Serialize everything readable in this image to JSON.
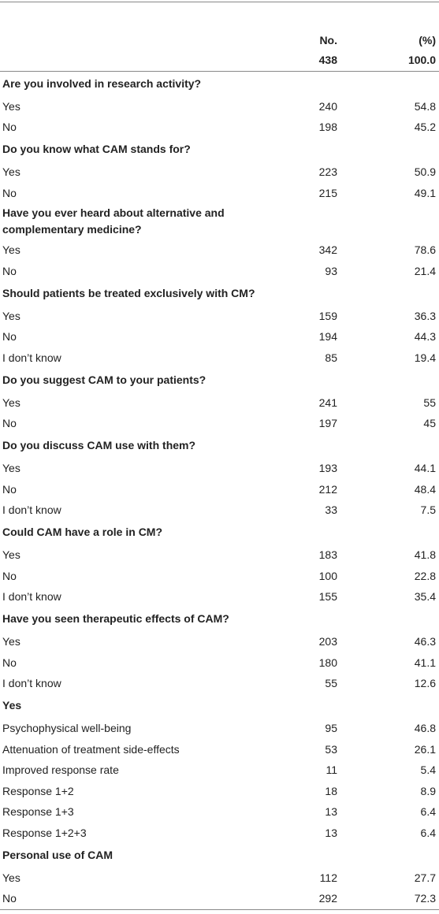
{
  "header": {
    "col_n": "No.",
    "col_pct": "(%)",
    "total_n": "438",
    "total_pct": "100.0"
  },
  "sections": [
    {
      "title": "Are you involved in research activity?",
      "rows": [
        [
          "Yes",
          "240",
          "54.8"
        ],
        [
          "No",
          "198",
          "45.2"
        ]
      ]
    },
    {
      "title": "Do you know what CAM stands for?",
      "rows": [
        [
          "Yes",
          "223",
          "50.9"
        ],
        [
          "No",
          "215",
          "49.1"
        ]
      ]
    },
    {
      "title": "Have you ever heard about alternative and complementary medicine?",
      "rows": [
        [
          "Yes",
          "342",
          "78.6"
        ],
        [
          "No",
          "93",
          "21.4"
        ]
      ]
    },
    {
      "title": "Should patients be treated exclusively with CM?",
      "rows": [
        [
          "Yes",
          "159",
          "36.3"
        ],
        [
          "No",
          "194",
          "44.3"
        ],
        [
          "I don’t know",
          "85",
          "19.4"
        ]
      ]
    },
    {
      "title": "Do you suggest CAM to your patients?",
      "rows": [
        [
          "Yes",
          "241",
          "55"
        ],
        [
          "No",
          "197",
          "45"
        ]
      ]
    },
    {
      "title": "Do you discuss CAM use with them?",
      "rows": [
        [
          "Yes",
          "193",
          "44.1"
        ],
        [
          "No",
          "212",
          "48.4"
        ],
        [
          "I don’t know",
          "33",
          "7.5"
        ]
      ]
    },
    {
      "title": "Could CAM have a role in CM?",
      "rows": [
        [
          "Yes",
          "183",
          "41.8"
        ],
        [
          "No",
          "100",
          "22.8"
        ],
        [
          "I don’t know",
          "155",
          "35.4"
        ]
      ]
    },
    {
      "title": "Have you seen therapeutic effects of CAM?",
      "rows": [
        [
          "Yes",
          "203",
          "46.3"
        ],
        [
          "No",
          "180",
          "41.1"
        ],
        [
          "I don’t know",
          "55",
          "12.6"
        ]
      ]
    },
    {
      "title": "Yes",
      "rows": [
        [
          "Psychophysical well-being",
          "95",
          "46.8"
        ],
        [
          "Attenuation of treatment side-effects",
          "53",
          "26.1"
        ],
        [
          "Improved response rate",
          "11",
          "5.4"
        ],
        [
          "Response 1+2",
          "18",
          "8.9"
        ],
        [
          "Response 1+3",
          "13",
          "6.4"
        ],
        [
          "Response 1+2+3",
          "13",
          "6.4"
        ]
      ]
    },
    {
      "title": "Personal use of CAM",
      "rows": [
        [
          "Yes",
          "112",
          "27.7"
        ],
        [
          "No",
          "292",
          "72.3"
        ]
      ]
    }
  ]
}
